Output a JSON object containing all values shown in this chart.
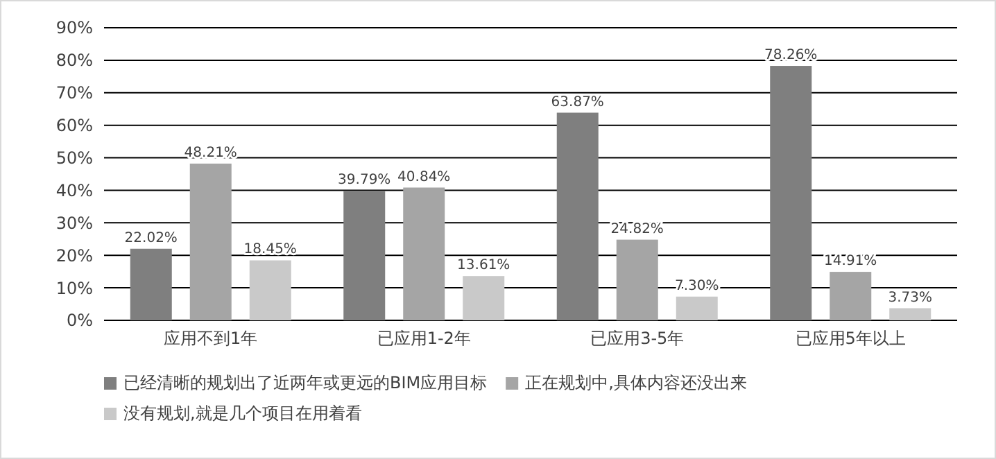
{
  "chart_data": {
    "type": "bar",
    "categories": [
      "应用不到1年",
      "已应用1-2年",
      "已应用3-5年",
      "已应用5年以上"
    ],
    "series": [
      {
        "name": "已经清晰的规划出了近两年或更远的BIM应用目标",
        "color": "#7f7f7f",
        "values": [
          22.02,
          39.79,
          63.87,
          78.26
        ]
      },
      {
        "name": "正在规划中,具体内容还没出来",
        "color": "#a5a5a5",
        "values": [
          48.21,
          40.84,
          24.82,
          14.91
        ]
      },
      {
        "name": "没有规划,就是几个项目在用着看",
        "color": "#c9c9c9",
        "values": [
          18.45,
          13.61,
          7.3,
          3.73
        ]
      }
    ],
    "value_labels": [
      [
        "22.02%",
        "39.79%",
        "63.87%",
        "78.26%"
      ],
      [
        "48.21%",
        "40.84%",
        "24.82%",
        "14.91%"
      ],
      [
        "18.45%",
        "13.61%",
        "7.30%",
        "3.73%"
      ]
    ],
    "ylim": [
      0,
      90
    ],
    "yticks": [
      {
        "value": 0,
        "label": "0%"
      },
      {
        "value": 10,
        "label": "10%"
      },
      {
        "value": 20,
        "label": "20%"
      },
      {
        "value": 30,
        "label": "30%"
      },
      {
        "value": 40,
        "label": "40%"
      },
      {
        "value": 50,
        "label": "50%"
      },
      {
        "value": 60,
        "label": "60%"
      },
      {
        "value": 70,
        "label": "70%"
      },
      {
        "value": 80,
        "label": "80%"
      },
      {
        "value": 90,
        "label": "90%"
      }
    ],
    "grid": "y",
    "legend": "bottom"
  }
}
